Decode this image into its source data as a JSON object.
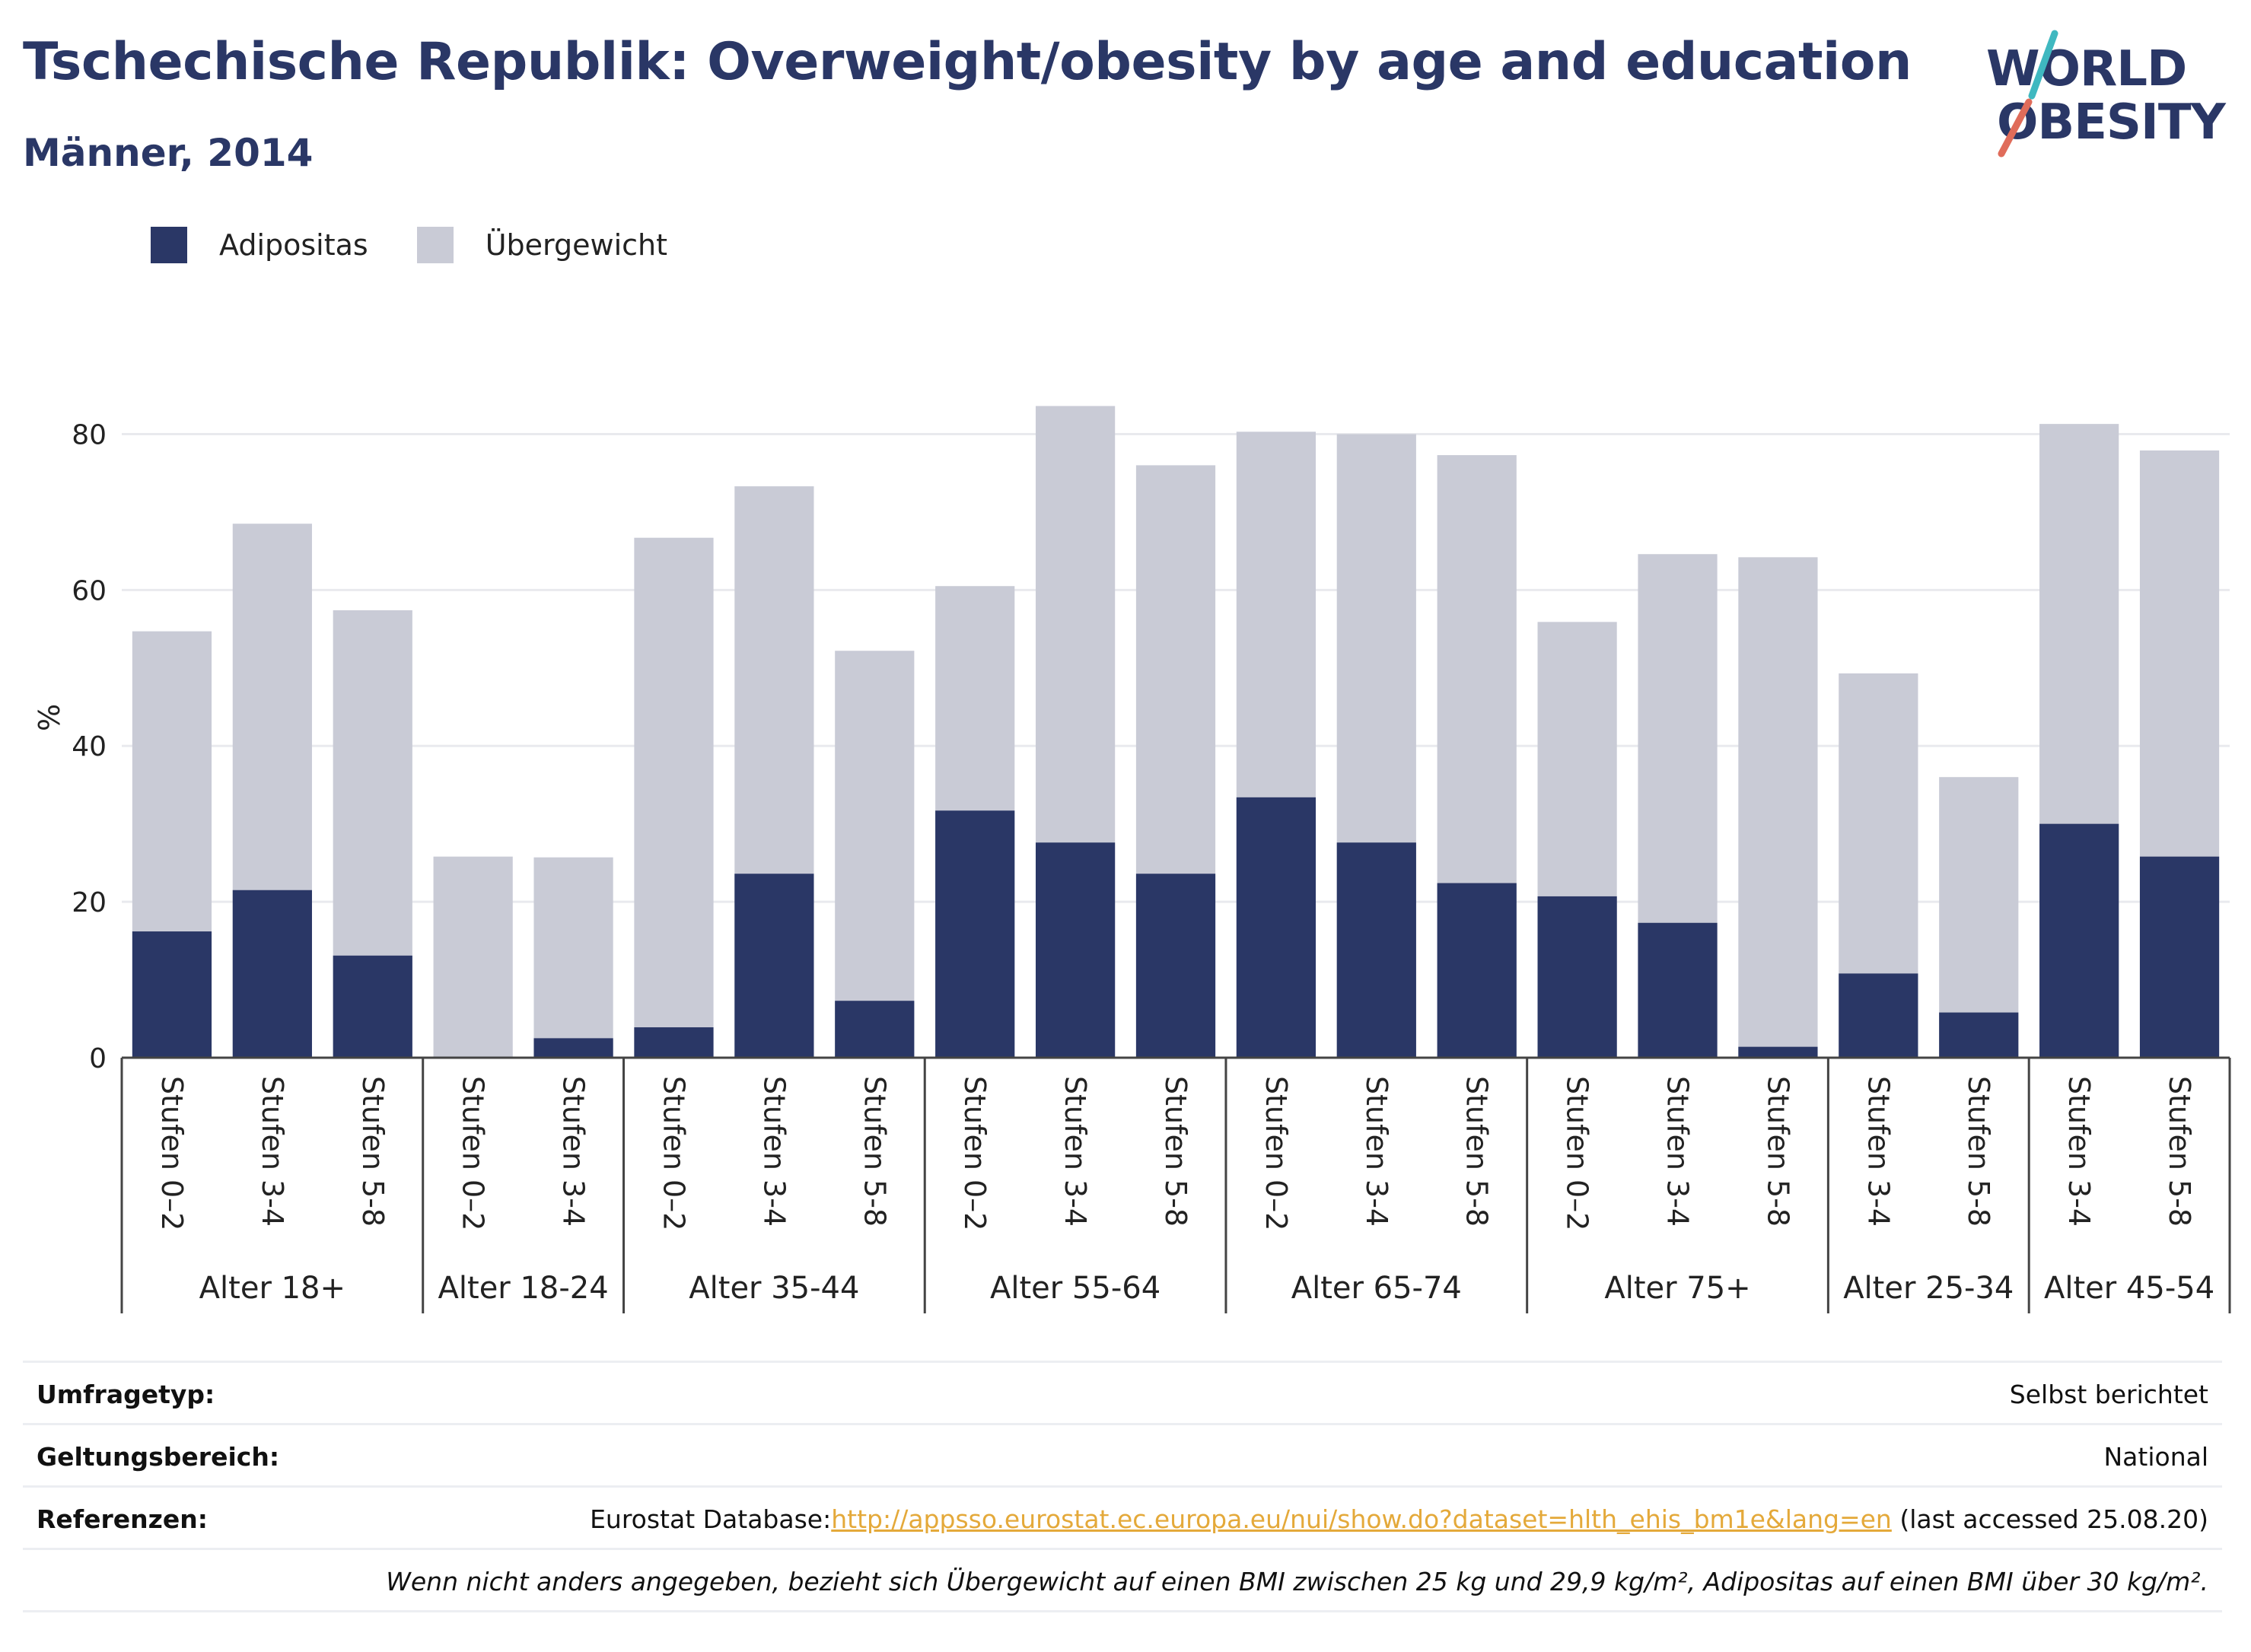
{
  "title": "Tschechische Republik: Overweight/obesity by age and education",
  "subtitle": "Männer, 2014",
  "logo": {
    "line1": "WORLD",
    "line2": "OBESITY"
  },
  "legend": [
    {
      "label": "Adipositas",
      "color": "#2a3766"
    },
    {
      "label": "Übergewicht",
      "color": "#c9cbd6"
    }
  ],
  "chart_data": {
    "type": "bar",
    "stacked": "overlay",
    "ylabel": "%",
    "ylim": [
      0,
      90
    ],
    "yticks": [
      0,
      20,
      40,
      60,
      80
    ],
    "grid": true,
    "legend_position": "top-left",
    "groups": [
      {
        "label": "Alter 18+",
        "bars": [
          {
            "category": "Stufen 0–2",
            "obesity": 16.2,
            "overweight": 54.7
          },
          {
            "category": "Stufen 3-4",
            "obesity": 21.5,
            "overweight": 68.5
          },
          {
            "category": "Stufen 5-8",
            "obesity": 13.1,
            "overweight": 57.4
          }
        ]
      },
      {
        "label": "Alter 18-24",
        "bars": [
          {
            "category": "Stufen 0–2",
            "obesity": 0,
            "overweight": 25.8
          },
          {
            "category": "Stufen 3-4",
            "obesity": 2.5,
            "overweight": 25.7
          }
        ]
      },
      {
        "label": "Alter 35-44",
        "bars": [
          {
            "category": "Stufen 0–2",
            "obesity": 3.9,
            "overweight": 66.7
          },
          {
            "category": "Stufen 3-4",
            "obesity": 23.6,
            "overweight": 73.3
          },
          {
            "category": "Stufen 5-8",
            "obesity": 7.3,
            "overweight": 52.2
          }
        ]
      },
      {
        "label": "Alter 55-64",
        "bars": [
          {
            "category": "Stufen 0–2",
            "obesity": 31.7,
            "overweight": 60.5
          },
          {
            "category": "Stufen 3-4",
            "obesity": 27.6,
            "overweight": 83.6
          },
          {
            "category": "Stufen 5-8",
            "obesity": 23.6,
            "overweight": 76.0
          }
        ]
      },
      {
        "label": "Alter 65-74",
        "bars": [
          {
            "category": "Stufen 0–2",
            "obesity": 33.4,
            "overweight": 80.3
          },
          {
            "category": "Stufen 3-4",
            "obesity": 27.6,
            "overweight": 80.0
          },
          {
            "category": "Stufen 5-8",
            "obesity": 22.4,
            "overweight": 77.3
          }
        ]
      },
      {
        "label": "Alter 75+",
        "bars": [
          {
            "category": "Stufen 0–2",
            "obesity": 20.7,
            "overweight": 55.9
          },
          {
            "category": "Stufen 3-4",
            "obesity": 17.3,
            "overweight": 64.6
          },
          {
            "category": "Stufen 5-8",
            "obesity": 1.4,
            "overweight": 64.2
          }
        ]
      },
      {
        "label": "Alter 25-34",
        "bars": [
          {
            "category": "Stufen 3-4",
            "obesity": 10.8,
            "overweight": 49.3
          },
          {
            "category": "Stufen 5-8",
            "obesity": 5.8,
            "overweight": 36.0
          }
        ]
      },
      {
        "label": "Alter 45-54",
        "bars": [
          {
            "category": "Stufen 3-4",
            "obesity": 30.0,
            "overweight": 81.3
          },
          {
            "category": "Stufen 5-8",
            "obesity": 25.8,
            "overweight": 77.9
          }
        ]
      }
    ]
  },
  "info": {
    "survey_type_label": "Umfragetyp:",
    "survey_type_value": "Selbst berichtet",
    "scope_label": "Geltungsbereich:",
    "scope_value": "National",
    "references_label": "Referenzen:",
    "references_prefix": "Eurostat Database:",
    "references_link": "http://appsso.eurostat.ec.europa.eu/nui/show.do?dataset=hlth_ehis_bm1e&lang=en",
    "references_suffix": " (last accessed 25.08.20)",
    "note": "Wenn nicht anders angegeben, bezieht sich Übergewicht auf einen BMI zwischen 25 kg und 29,9 kg/m², Adipositas auf einen BMI über 30 kg/m²."
  }
}
